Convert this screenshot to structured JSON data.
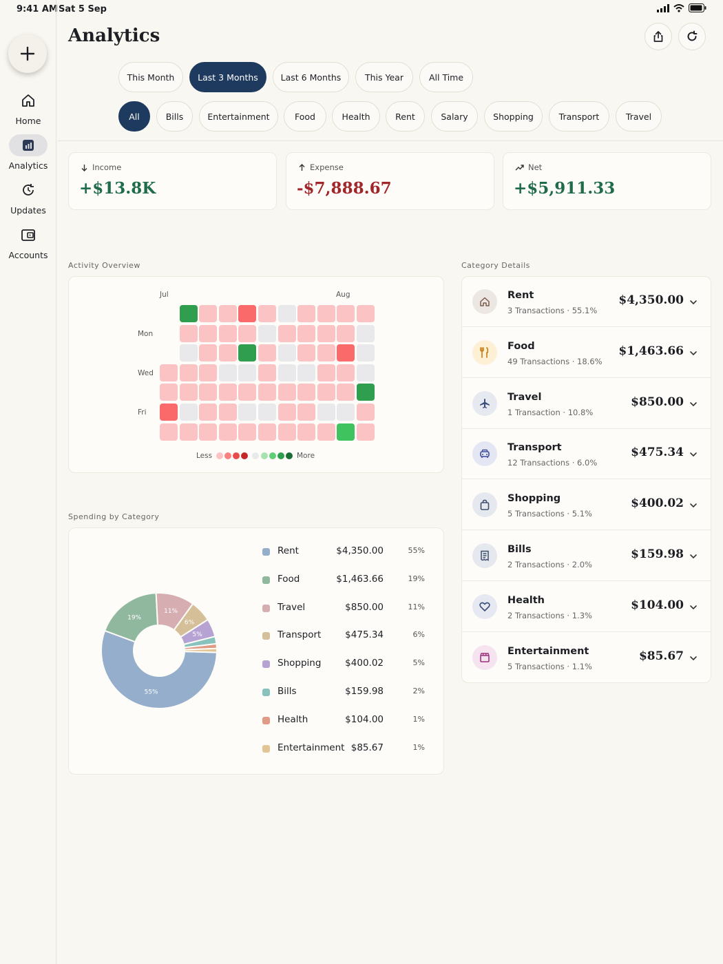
{
  "status": {
    "time": "9:41 AM",
    "date": "Sat 5 Sep"
  },
  "sidebar": {
    "add_icon": "plus-icon",
    "items": [
      {
        "label": "Home",
        "icon": "home-icon",
        "active": false
      },
      {
        "label": "Analytics",
        "icon": "chart-icon",
        "active": true
      },
      {
        "label": "Updates",
        "icon": "refresh-clock-icon",
        "active": false
      },
      {
        "label": "Accounts",
        "icon": "wallet-icon",
        "active": false
      }
    ]
  },
  "header": {
    "title": "Analytics",
    "share_icon": "share-icon",
    "refresh_icon": "refresh-icon"
  },
  "periods": [
    {
      "label": "This Month",
      "active": false
    },
    {
      "label": "Last 3 Months",
      "active": true
    },
    {
      "label": "Last 6 Months",
      "active": false
    },
    {
      "label": "This Year",
      "active": false
    },
    {
      "label": "All Time",
      "active": false
    }
  ],
  "filters": [
    {
      "label": "All",
      "active": true
    },
    {
      "label": "Bills",
      "active": false
    },
    {
      "label": "Entertainment",
      "active": false
    },
    {
      "label": "Food",
      "active": false
    },
    {
      "label": "Health",
      "active": false
    },
    {
      "label": "Rent",
      "active": false
    },
    {
      "label": "Salary",
      "active": false
    },
    {
      "label": "Shopping",
      "active": false
    },
    {
      "label": "Transport",
      "active": false
    },
    {
      "label": "Travel",
      "active": false
    }
  ],
  "summary": {
    "income": {
      "label": "Income",
      "value": "+$13.8K",
      "color": "#1f6b4a"
    },
    "expense": {
      "label": "Expense",
      "value": "-$7,888.67",
      "color": "#a1262b"
    },
    "net": {
      "label": "Net",
      "value": "+$5,911.33",
      "color": "#1f6b4a"
    }
  },
  "activity": {
    "title": "Activity Overview",
    "months": [
      "Jul",
      "Aug"
    ],
    "days": [
      "Mon",
      "Wed",
      "Fri"
    ],
    "legend_less": "Less",
    "legend_more": "More",
    "colors": {
      "empty": "#e9e9ec",
      "light_red": "#fcc3c5",
      "red": "#fb6a6a",
      "green": "#2f9e4f",
      "bright_green": "#3fc35e"
    }
  },
  "spending": {
    "title": "Spending by Category",
    "items": [
      {
        "name": "Rent",
        "amount": "$4,350.00",
        "pct": "55%",
        "color": "#94aecb"
      },
      {
        "name": "Food",
        "amount": "$1,463.66",
        "pct": "19%",
        "color": "#8fb89f"
      },
      {
        "name": "Travel",
        "amount": "$850.00",
        "pct": "11%",
        "color": "#d6aeb2"
      },
      {
        "name": "Transport",
        "amount": "$475.34",
        "pct": "6%",
        "color": "#d4bf98"
      },
      {
        "name": "Shopping",
        "amount": "$400.02",
        "pct": "5%",
        "color": "#b6a3d3"
      },
      {
        "name": "Bills",
        "amount": "$159.98",
        "pct": "2%",
        "color": "#88c2bd"
      },
      {
        "name": "Health",
        "amount": "$104.00",
        "pct": "1%",
        "color": "#df9b86"
      },
      {
        "name": "Entertainment",
        "amount": "$85.67",
        "pct": "1%",
        "color": "#e2c594"
      }
    ]
  },
  "chart_data": {
    "type": "pie",
    "categories": [
      "Rent",
      "Food",
      "Travel",
      "Transport",
      "Shopping",
      "Bills",
      "Health",
      "Entertainment"
    ],
    "values": [
      4350.0,
      1463.66,
      850.0,
      475.34,
      400.02,
      159.98,
      104.0,
      85.67
    ],
    "slice_labels": [
      "55%",
      "19%",
      "11%",
      "6%",
      "5%",
      "",
      "",
      ""
    ]
  },
  "category_details": {
    "title": "Category Details",
    "items": [
      {
        "name": "Rent",
        "sub": "3 Transactions · 55.1%",
        "amount": "$4,350.00",
        "icon": "home-icon",
        "bg": "#ece7e3",
        "fg": "#7a5b4a"
      },
      {
        "name": "Food",
        "sub": "49 Transactions · 18.6%",
        "amount": "$1,463.66",
        "icon": "fork-knife-icon",
        "bg": "#fdf0d5",
        "fg": "#c47e0f"
      },
      {
        "name": "Travel",
        "sub": "1 Transaction · 10.8%",
        "amount": "$850.00",
        "icon": "airplane-icon",
        "bg": "#e6e9f0",
        "fg": "#3c4f7a"
      },
      {
        "name": "Transport",
        "sub": "12 Transactions · 6.0%",
        "amount": "$475.34",
        "icon": "car-icon",
        "bg": "#e4e6f3",
        "fg": "#3d4f9a"
      },
      {
        "name": "Shopping",
        "sub": "5 Transactions · 5.1%",
        "amount": "$400.02",
        "icon": "shopping-bag-icon",
        "bg": "#e5e8ee",
        "fg": "#3c4f6a"
      },
      {
        "name": "Bills",
        "sub": "2 Transactions · 2.0%",
        "amount": "$159.98",
        "icon": "receipt-icon",
        "bg": "#e5e8ee",
        "fg": "#3c4f6a"
      },
      {
        "name": "Health",
        "sub": "2 Transactions · 1.3%",
        "amount": "$104.00",
        "icon": "heart-icon",
        "bg": "#e6e9f1",
        "fg": "#3c4f7a"
      },
      {
        "name": "Entertainment",
        "sub": "5 Transactions · 1.1%",
        "amount": "$85.67",
        "icon": "clapper-icon",
        "bg": "#f5e3f0",
        "fg": "#a0307a"
      }
    ]
  }
}
